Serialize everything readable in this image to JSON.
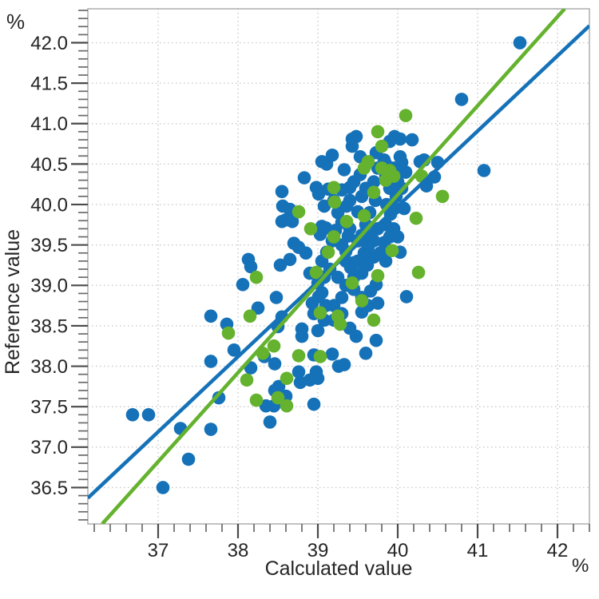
{
  "chart_data": {
    "type": "scatter",
    "title": "",
    "xlabel": "Calculated value",
    "ylabel": "Reference value",
    "x_unit": "%",
    "y_unit": "%",
    "xlim": [
      36.12,
      42.4
    ],
    "ylim": [
      36.05,
      42.42
    ],
    "x_major_ticks": [
      37,
      38,
      39,
      40,
      41,
      42
    ],
    "x_tick_labels": [
      "37",
      "38",
      "39",
      "40",
      "41",
      "42"
    ],
    "x_minor_step": 0.2,
    "y_major_ticks": [
      36.5,
      37.0,
      37.5,
      38.0,
      38.5,
      39.0,
      39.5,
      40.0,
      40.5,
      41.0,
      41.5,
      42.0
    ],
    "y_tick_labels": [
      "36.5",
      "37.0",
      "37.5",
      "38.0",
      "38.5",
      "39.0",
      "39.5",
      "40.0",
      "40.5",
      "41.0",
      "41.5",
      "42.0"
    ],
    "y_minor_step": 0.1,
    "grid": {
      "style": "dotted",
      "color": "#c9c9c9",
      "x_lines": "at major ticks",
      "y_lines": "at major ticks"
    },
    "legend": "none",
    "marker_radius": 8.3,
    "series": [
      {
        "name": "samples-blue",
        "color": "#1572B8",
        "marker": "circle",
        "points": [
          [
            41.53,
            42.0
          ],
          [
            40.8,
            41.3
          ],
          [
            41.08,
            40.42
          ],
          [
            40.5,
            40.52
          ],
          [
            40.46,
            40.34
          ],
          [
            40.36,
            40.23
          ],
          [
            40.33,
            40.55
          ],
          [
            40.28,
            40.53
          ],
          [
            40.18,
            40.8
          ],
          [
            40.05,
            40.52
          ],
          [
            40.03,
            40.81
          ],
          [
            39.96,
            40.84
          ],
          [
            39.9,
            40.78
          ],
          [
            39.48,
            40.84
          ],
          [
            39.43,
            40.81
          ],
          [
            39.43,
            40.72
          ],
          [
            39.53,
            40.59
          ],
          [
            39.73,
            40.64
          ],
          [
            39.83,
            40.55
          ],
          [
            40.03,
            40.59
          ],
          [
            39.33,
            40.43
          ],
          [
            39.53,
            40.37
          ],
          [
            39.18,
            40.61
          ],
          [
            39.05,
            40.53
          ],
          [
            39.11,
            40.5
          ],
          [
            38.83,
            40.33
          ],
          [
            38.55,
            40.16
          ],
          [
            38.56,
            39.98
          ],
          [
            38.65,
            39.94
          ],
          [
            38.98,
            40.21
          ],
          [
            39.01,
            40.13
          ],
          [
            39.13,
            40.19
          ],
          [
            39.08,
            39.98
          ],
          [
            39.4,
            40.21
          ],
          [
            39.36,
            39.98
          ],
          [
            39.86,
            40.0
          ],
          [
            39.96,
            39.95
          ],
          [
            39.91,
            39.88
          ],
          [
            39.5,
            39.91
          ],
          [
            39.3,
            40.18
          ],
          [
            39.45,
            40.28
          ],
          [
            39.6,
            40.2
          ],
          [
            39.7,
            40.28
          ],
          [
            39.75,
            40.45
          ],
          [
            39.85,
            40.5
          ],
          [
            39.95,
            40.45
          ],
          [
            40.0,
            40.28
          ],
          [
            39.9,
            40.2
          ],
          [
            39.85,
            40.35
          ],
          [
            40.1,
            40.4
          ],
          [
            40.05,
            40.2
          ],
          [
            39.98,
            40.1
          ],
          [
            40.08,
            39.95
          ],
          [
            39.72,
            40.05
          ],
          [
            39.55,
            40.1
          ],
          [
            39.4,
            40.05
          ],
          [
            39.2,
            40.05
          ],
          [
            39.65,
            39.9
          ],
          [
            39.25,
            39.9
          ],
          [
            38.6,
            39.81
          ],
          [
            38.68,
            39.79
          ],
          [
            38.55,
            39.79
          ],
          [
            39.05,
            39.73
          ],
          [
            39.1,
            39.71
          ],
          [
            39.03,
            39.63
          ],
          [
            39.4,
            39.7
          ],
          [
            39.38,
            39.61
          ],
          [
            39.75,
            39.7
          ],
          [
            39.3,
            39.78
          ],
          [
            39.6,
            39.75
          ],
          [
            39.85,
            39.75
          ],
          [
            39.95,
            39.7
          ],
          [
            39.9,
            39.6
          ],
          [
            39.22,
            39.68
          ],
          [
            38.7,
            39.52
          ],
          [
            38.76,
            39.47
          ],
          [
            38.65,
            39.32
          ],
          [
            38.53,
            39.25
          ],
          [
            39.11,
            39.41
          ],
          [
            39.41,
            39.22
          ],
          [
            39.45,
            39.28
          ],
          [
            39.63,
            39.47
          ],
          [
            39.61,
            39.53
          ],
          [
            39.83,
            39.53
          ],
          [
            40.03,
            39.41
          ],
          [
            38.13,
            39.32
          ],
          [
            38.16,
            39.23
          ],
          [
            39.18,
            39.55
          ],
          [
            39.3,
            39.5
          ],
          [
            39.35,
            39.42
          ],
          [
            39.5,
            39.55
          ],
          [
            39.55,
            39.62
          ],
          [
            39.65,
            39.6
          ],
          [
            39.7,
            39.55
          ],
          [
            39.58,
            39.4
          ],
          [
            39.5,
            39.3
          ],
          [
            39.62,
            39.25
          ],
          [
            39.7,
            39.35
          ],
          [
            39.78,
            39.4
          ],
          [
            39.85,
            39.3
          ],
          [
            40.0,
            39.6
          ],
          [
            39.35,
            39.3
          ],
          [
            38.06,
            39.01
          ],
          [
            39.0,
            39.03
          ],
          [
            39.08,
            39.1
          ],
          [
            39.73,
            39.01
          ],
          [
            39.45,
            39.1
          ],
          [
            39.55,
            39.15
          ],
          [
            39.35,
            39.0
          ],
          [
            39.25,
            39.1
          ],
          [
            39.15,
            39.2
          ],
          [
            39.05,
            39.3
          ],
          [
            38.9,
            39.15
          ],
          [
            38.85,
            39.4
          ],
          [
            39.45,
            38.95
          ],
          [
            38.48,
            38.85
          ],
          [
            39.05,
            38.91
          ],
          [
            39.01,
            38.86
          ],
          [
            38.93,
            38.78
          ],
          [
            39.66,
            38.93
          ],
          [
            40.11,
            38.86
          ],
          [
            39.63,
            38.75
          ],
          [
            39.75,
            38.78
          ],
          [
            39.55,
            38.85
          ],
          [
            39.3,
            38.85
          ],
          [
            39.2,
            38.75
          ],
          [
            39.1,
            38.75
          ],
          [
            38.25,
            38.72
          ],
          [
            37.66,
            38.62
          ],
          [
            37.86,
            38.52
          ],
          [
            38.55,
            38.61
          ],
          [
            39.08,
            38.57
          ],
          [
            39.55,
            38.67
          ],
          [
            38.5,
            38.49
          ],
          [
            38.8,
            38.46
          ],
          [
            38.8,
            38.37
          ],
          [
            39.0,
            38.44
          ],
          [
            39.4,
            38.47
          ],
          [
            39.48,
            38.37
          ],
          [
            39.73,
            38.32
          ],
          [
            38.95,
            38.65
          ],
          [
            39.3,
            38.65
          ],
          [
            39.2,
            38.57
          ],
          [
            38.33,
            38.12
          ],
          [
            38.46,
            38.03
          ],
          [
            38.95,
            38.14
          ],
          [
            39.18,
            38.15
          ],
          [
            39.33,
            38.02
          ],
          [
            39.26,
            38.0
          ],
          [
            39.6,
            38.16
          ],
          [
            37.66,
            38.06
          ],
          [
            38.16,
            37.98
          ],
          [
            37.95,
            38.2
          ],
          [
            38.76,
            37.93
          ],
          [
            38.98,
            37.93
          ],
          [
            39.0,
            37.85
          ],
          [
            38.9,
            37.83
          ],
          [
            38.78,
            37.8
          ],
          [
            38.51,
            37.75
          ],
          [
            38.46,
            37.7
          ],
          [
            38.6,
            37.63
          ],
          [
            37.76,
            37.61
          ],
          [
            38.35,
            37.51
          ],
          [
            38.45,
            37.51
          ],
          [
            38.95,
            37.53
          ],
          [
            36.68,
            37.4
          ],
          [
            36.88,
            37.4
          ],
          [
            38.4,
            37.31
          ],
          [
            37.28,
            37.23
          ],
          [
            37.66,
            37.22
          ],
          [
            37.38,
            36.85
          ],
          [
            37.06,
            36.5
          ]
        ]
      },
      {
        "name": "samples-green",
        "color": "#64B22E",
        "marker": "circle",
        "points": [
          [
            40.1,
            41.1
          ],
          [
            39.75,
            40.9
          ],
          [
            39.8,
            40.72
          ],
          [
            39.63,
            40.53
          ],
          [
            39.8,
            40.45
          ],
          [
            39.58,
            40.45
          ],
          [
            39.85,
            40.3
          ],
          [
            39.95,
            40.35
          ],
          [
            40.3,
            40.35
          ],
          [
            40.56,
            40.1
          ],
          [
            39.9,
            40.42
          ],
          [
            39.7,
            40.15
          ],
          [
            39.2,
            40.21
          ],
          [
            39.21,
            40.03
          ],
          [
            38.76,
            39.91
          ],
          [
            38.91,
            39.7
          ],
          [
            39.2,
            39.6
          ],
          [
            39.36,
            39.79
          ],
          [
            39.58,
            39.86
          ],
          [
            39.13,
            39.41
          ],
          [
            38.98,
            39.16
          ],
          [
            39.43,
            39.03
          ],
          [
            39.75,
            39.12
          ],
          [
            39.93,
            39.43
          ],
          [
            40.23,
            39.83
          ],
          [
            40.26,
            39.16
          ],
          [
            38.23,
            39.1
          ],
          [
            39.03,
            38.66
          ],
          [
            39.25,
            38.62
          ],
          [
            39.55,
            38.81
          ],
          [
            39.28,
            38.52
          ],
          [
            38.45,
            38.25
          ],
          [
            39.7,
            38.57
          ],
          [
            38.15,
            38.62
          ],
          [
            37.88,
            38.41
          ],
          [
            38.31,
            38.16
          ],
          [
            38.76,
            38.13
          ],
          [
            39.03,
            38.12
          ],
          [
            38.61,
            37.85
          ],
          [
            38.5,
            37.61
          ],
          [
            38.23,
            37.58
          ],
          [
            38.61,
            37.51
          ],
          [
            38.11,
            37.83
          ]
        ]
      }
    ],
    "fit_lines": [
      {
        "name": "regression-line-blue",
        "color": "#1572B8",
        "from": [
          36.12,
          36.37
        ],
        "to": [
          42.4,
          42.21
        ]
      },
      {
        "name": "regression-line-green",
        "color": "#64B22E",
        "from": [
          36.3,
          36.05
        ],
        "to": [
          42.09,
          42.42
        ]
      }
    ]
  }
}
